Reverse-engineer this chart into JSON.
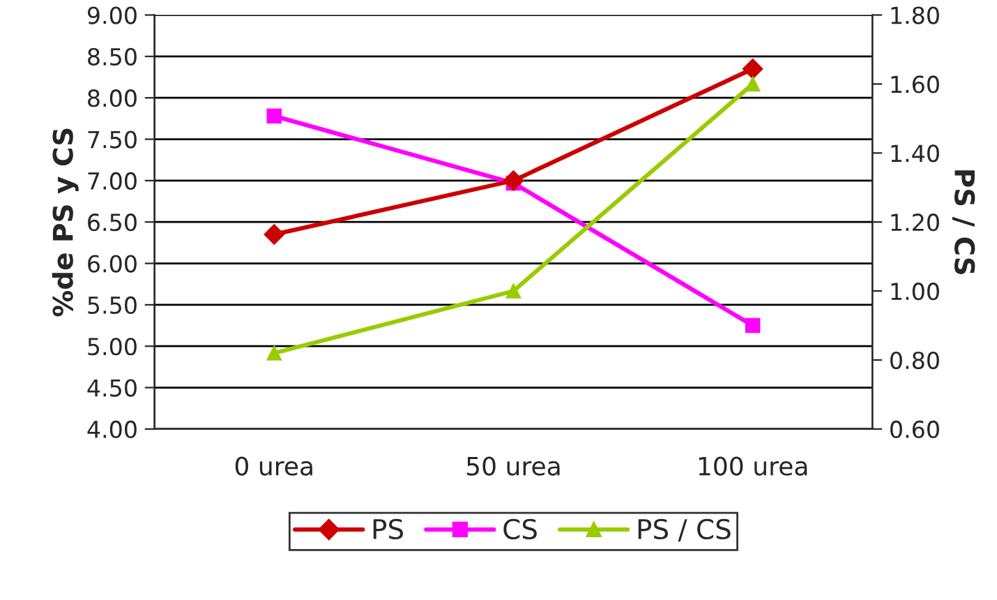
{
  "chart_data": {
    "type": "line",
    "categories": [
      "0 urea",
      "50 urea",
      "100 urea"
    ],
    "ylabel": "%de PS y CS",
    "y2label": "PS / CS",
    "series": [
      {
        "name": "PS",
        "color": "#cc0000",
        "marker": "diamond",
        "values": [
          6.35,
          7.0,
          8.35
        ]
      },
      {
        "name": "CS",
        "color": "#ff00ff",
        "marker": "square",
        "values": [
          7.78,
          6.97,
          5.25
        ]
      },
      {
        "name": "PS / CS",
        "color": "#99cc00",
        "marker": "triangle",
        "axis": "y2",
        "values": [
          0.82,
          1.0,
          1.6
        ]
      }
    ],
    "ylim": [
      4,
      9
    ],
    "yticks": [
      {
        "value": 4,
        "label": "4.00"
      },
      {
        "value": 4.5,
        "label": "4.50"
      },
      {
        "value": 5,
        "label": "5.00"
      },
      {
        "value": 5.5,
        "label": "5.50"
      },
      {
        "value": 6,
        "label": "6.00"
      },
      {
        "value": 6.5,
        "label": "6.50"
      },
      {
        "value": 7,
        "label": "7.00"
      },
      {
        "value": 7.5,
        "label": "7.50"
      },
      {
        "value": 8,
        "label": "8.00"
      },
      {
        "value": 8.5,
        "label": "8.50"
      },
      {
        "value": 9,
        "label": "9.00"
      }
    ],
    "y2lim": [
      0.6,
      1.8
    ],
    "y2ticks": [
      {
        "value": 0.6,
        "label": "0.60"
      },
      {
        "value": 0.8,
        "label": "0.80"
      },
      {
        "value": 1.0,
        "label": "1.00"
      },
      {
        "value": 1.2,
        "label": "1.20"
      },
      {
        "value": 1.4,
        "label": "1.40"
      },
      {
        "value": 1.6,
        "label": "1.60"
      },
      {
        "value": 1.8,
        "label": "1.80"
      }
    ],
    "grid": "y",
    "legend": "bottom",
    "line_style": "solid"
  }
}
